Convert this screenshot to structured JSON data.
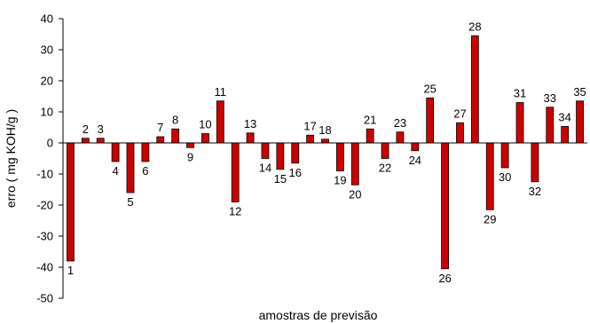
{
  "chart_data": {
    "type": "bar",
    "title": "",
    "xlabel": "amostras de previsão",
    "ylabel": "erro ( mg KOH/g )",
    "ylim": [
      -50,
      40
    ],
    "yticks": [
      40,
      30,
      20,
      10,
      0,
      -10,
      -20,
      -30,
      -40,
      -50
    ],
    "grid": false,
    "legend": "none",
    "bar_color": "#cc0000",
    "categories": [
      "1",
      "2",
      "3",
      "4",
      "5",
      "6",
      "7",
      "8",
      "9",
      "10",
      "11",
      "12",
      "13",
      "14",
      "15",
      "16",
      "17",
      "18",
      "19",
      "20",
      "21",
      "22",
      "23",
      "24",
      "25",
      "26",
      "27",
      "28",
      "29",
      "30",
      "31",
      "32",
      "33",
      "34",
      "35"
    ],
    "values": [
      -38,
      1.5,
      1.5,
      -6,
      -16,
      -6,
      2,
      4.5,
      -1.5,
      3,
      13.5,
      -19,
      3.2,
      -5,
      -8.5,
      -6.5,
      2.5,
      1.2,
      -9,
      -13.5,
      4.5,
      -5,
      3.5,
      -2.5,
      14.5,
      -40.5,
      6.5,
      34.5,
      -21.5,
      -8,
      13,
      -12.5,
      11.5,
      5.3,
      13.5
    ],
    "data_labels": [
      "1",
      "2",
      "3",
      "4",
      "5",
      "6",
      "7",
      "8",
      "9",
      "10",
      "11",
      "12",
      "13",
      "14",
      "15",
      "16",
      "17",
      "18",
      "19",
      "20",
      "21",
      "22",
      "23",
      "24",
      "25",
      "26",
      "27",
      "28",
      "29",
      "30",
      "31",
      "32",
      "33",
      "34",
      "35"
    ]
  }
}
